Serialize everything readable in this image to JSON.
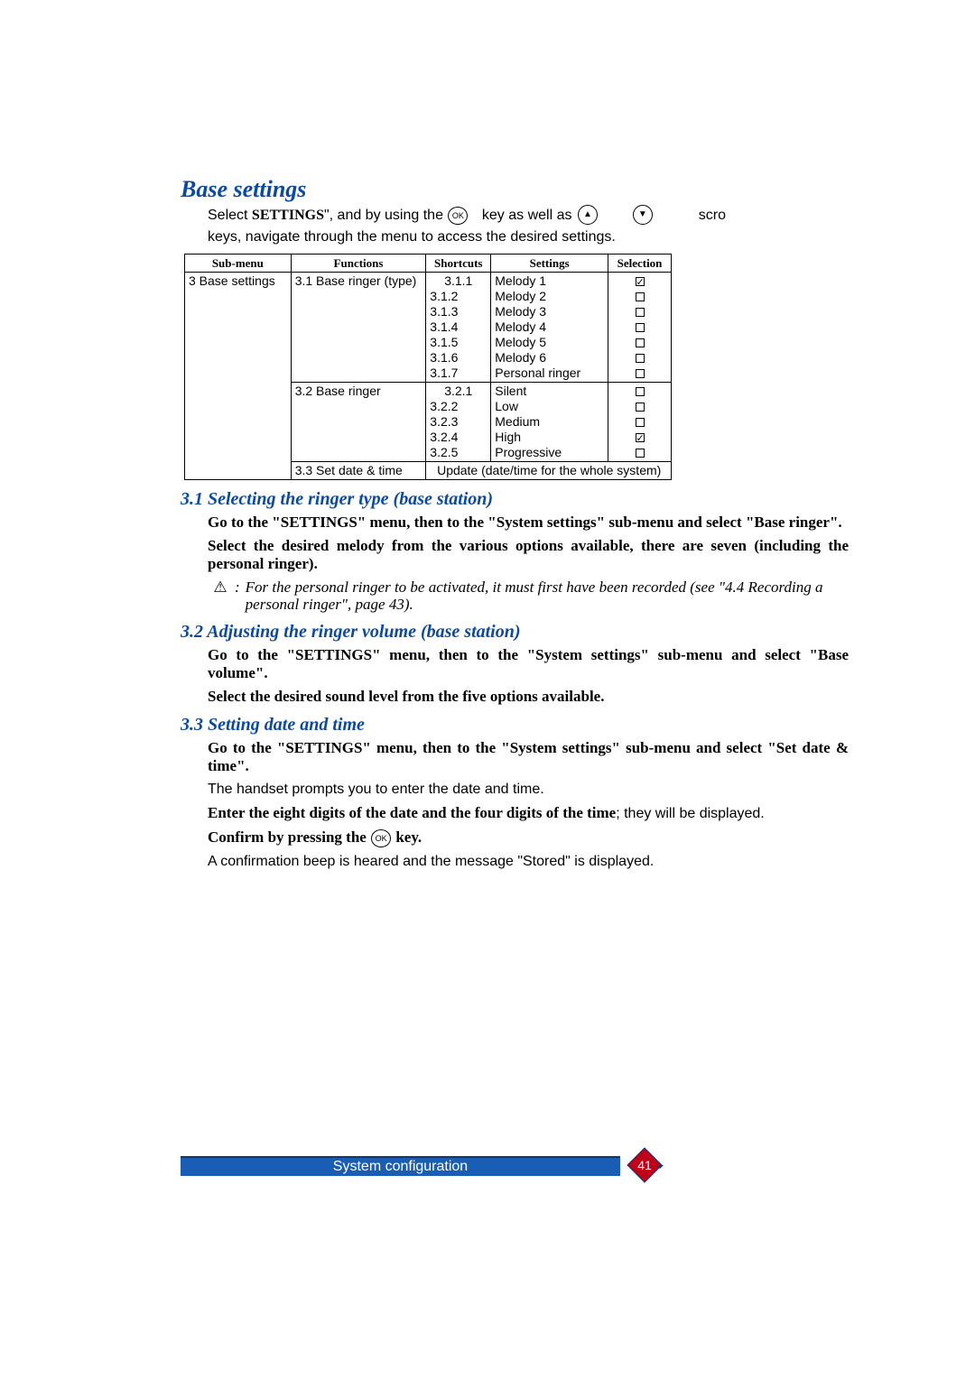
{
  "main_title": "Base settings",
  "intro": {
    "select_word": "Select",
    "settings_word": "SETTINGS",
    "after_settings": "\", and by using the",
    "ok_icon": "OK",
    "mid1": "key as well as",
    "up_icon": "▲",
    "down_icon": "▼",
    "tail": "scro",
    "line2": "keys, navigate through the menu to access the desired settings."
  },
  "table": {
    "headers": [
      "Sub-menu",
      "Functions",
      "Shortcuts",
      "Settings",
      "Selection"
    ],
    "submenu": "3 Base settings",
    "rows": [
      {
        "func": "3.1 Base ringer (type)",
        "shortcuts": [
          "3.1.1",
          "3.1.2",
          "3.1.3",
          "3.1.4",
          "3.1.5",
          "3.1.6",
          "3.1.7"
        ],
        "settings": [
          "Melody 1",
          "Melody 2",
          "Melody 3",
          "Melody 4",
          "Melody 5",
          "Melody 6",
          "Personal ringer"
        ],
        "selections": [
          true,
          false,
          false,
          false,
          false,
          false,
          false
        ]
      },
      {
        "func": "3.2 Base ringer",
        "shortcuts": [
          "3.2.1",
          "3.2.2",
          "3.2.3",
          "3.2.4",
          "3.2.5"
        ],
        "settings": [
          "Silent",
          "Low",
          "Medium",
          "High",
          "Progressive"
        ],
        "selections": [
          false,
          false,
          false,
          true,
          false
        ]
      },
      {
        "func": "3.3 Set date & time",
        "merged": "Update (date/time for the whole system)"
      }
    ]
  },
  "sections": [
    {
      "heading": "3.1 Selecting the ringer type (base station)",
      "paras": [
        {
          "type": "serif-bold",
          "text": "Go to the \"SETTINGS\" menu, then to the \"System settings\" sub-menu and select \"Base ringer\"."
        },
        {
          "type": "serif-bold",
          "text": "Select the desired melody from the various options available, there are seven (including the personal ringer)."
        }
      ],
      "warn": "For the personal ringer to be activated, it must first have been recorded (see \"4.4 Recording a personal ringer\", page 43)."
    },
    {
      "heading": "3.2 Adjusting the ringer volume (base station)",
      "paras": [
        {
          "type": "serif-bold",
          "text": "Go to the \"SETTINGS\" menu, then to the \"System settings\" sub-menu and select \"Base volume\"."
        },
        {
          "type": "serif-bold",
          "text": "Select the desired sound level from the five options available."
        }
      ]
    },
    {
      "heading": "3.3 Setting date and time",
      "paras": [
        {
          "type": "serif-bold",
          "text": "Go to the \"SETTINGS\" menu, then to the \"System settings\" sub-menu and select \"Set date & time\"."
        },
        {
          "type": "sans",
          "text": "The handset prompts you to enter the date and time."
        },
        {
          "type": "mixed",
          "serif": "Enter the eight digits of the date and the four digits of the time",
          "sans": "; they will be displayed."
        },
        {
          "type": "confirm",
          "pre": "Confirm by pressing the ",
          "key": "OK",
          "post": " key."
        },
        {
          "type": "sans",
          "text": "A confirmation beep is heared and the message \"Stored\" is displayed."
        }
      ]
    }
  ],
  "footer": "System configuration",
  "page_number": "41",
  "colors": {
    "blue": "#0b4aa0",
    "bar": "#1a5db5",
    "diamond_red": "#c00018"
  }
}
